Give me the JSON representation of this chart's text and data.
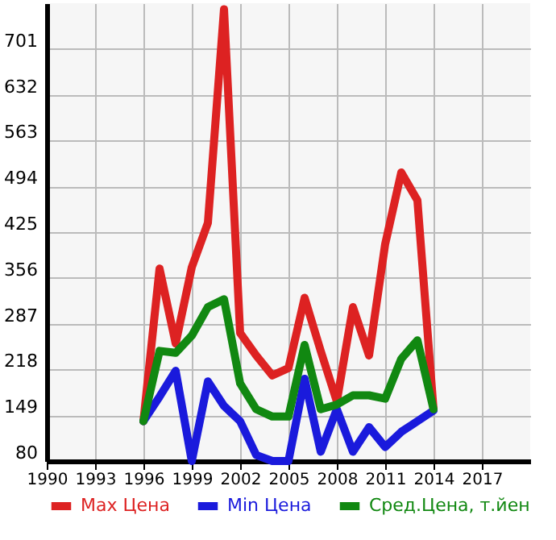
{
  "chart_data": {
    "type": "line",
    "x": [
      1996,
      1997,
      1998,
      1999,
      2000,
      2001,
      2002,
      2003,
      2004,
      2005,
      2006,
      2007,
      2008,
      2009,
      2010,
      2011,
      2012,
      2013,
      2014
    ],
    "series": [
      {
        "name": "Max Цена",
        "color": "#dd2222",
        "values": [
          140,
          370,
          257,
          372,
          439,
          761,
          273,
          239,
          209,
          220,
          326,
          246,
          170,
          312,
          239,
          407,
          515,
          473,
          158
        ]
      },
      {
        "name": "Min Цена",
        "color": "#1a1adc",
        "values": [
          140,
          177,
          216,
          80,
          200,
          163,
          140,
          89,
          80,
          80,
          204,
          94,
          158,
          94,
          131,
          101,
          124,
          140,
          156
        ]
      },
      {
        "name": "Сред.Цена, т.йен",
        "color": "#118811",
        "values": [
          140,
          246,
          243,
          269,
          312,
          324,
          197,
          158,
          147,
          147,
          255,
          158,
          165,
          179,
          179,
          174,
          234,
          262,
          158
        ]
      }
    ],
    "xlim": [
      1990,
      2020
    ],
    "xticks": [
      1990,
      1993,
      1996,
      1999,
      2002,
      2005,
      2008,
      2011,
      2014,
      2017
    ],
    "ylim": [
      80,
      770
    ],
    "yticks": [
      80,
      149,
      218,
      287,
      356,
      425,
      494,
      563,
      632,
      701
    ],
    "grid": true,
    "legend": "bottom",
    "marker": "none",
    "line_style": "solid"
  }
}
